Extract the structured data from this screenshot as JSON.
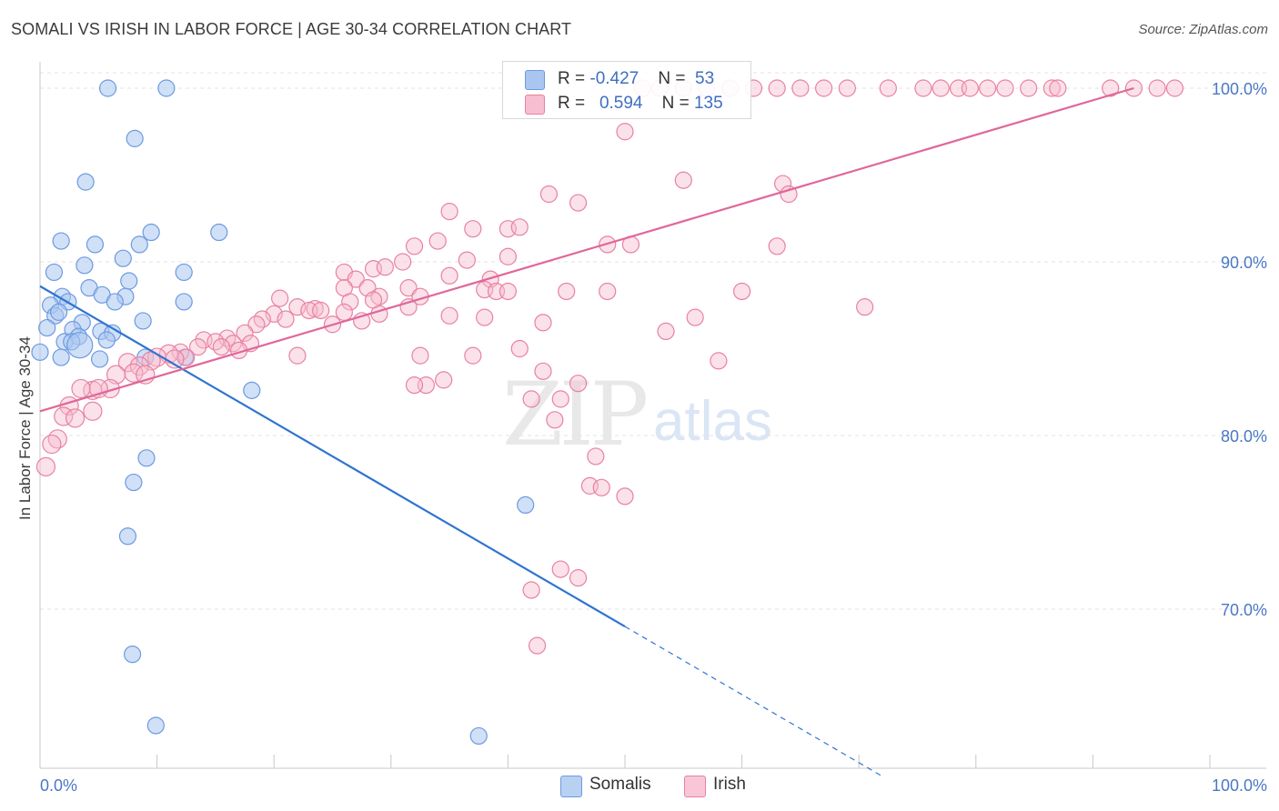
{
  "title": "SOMALI VS IRISH IN LABOR FORCE | AGE 30-34 CORRELATION CHART",
  "source": "Source: ZipAtlas.com",
  "watermark": {
    "zip": "ZIP",
    "atlas": "atlas"
  },
  "legend": {
    "rows": [
      {
        "r_label": "R = ",
        "r_value": "-0.427",
        "n_label": "N = ",
        "n_value": "53",
        "color": "#a9c6f0",
        "border": "#6d9ae0"
      },
      {
        "r_label": "R = ",
        "r_value": "0.594",
        "n_label": "N = ",
        "n_value": "135",
        "color": "#f7bdd0",
        "border": "#e8829f"
      }
    ],
    "bottom": [
      {
        "label": "Somalis",
        "color": "#b8d0f2",
        "border": "#6d9ae0"
      },
      {
        "label": "Irish",
        "color": "#f8c6d6",
        "border": "#e8829f"
      }
    ]
  },
  "chart_data": {
    "type": "scatter",
    "title": "SOMALI VS IRISH IN LABOR FORCE | AGE 30-34 CORRELATION CHART",
    "xlabel": "",
    "ylabel": "In Labor Force | Age 30-34",
    "xlim": [
      0,
      100
    ],
    "ylim": [
      61.5,
      102
    ],
    "x_tick_labels": [
      {
        "value": 0,
        "label": "0.0%"
      },
      {
        "value": 100,
        "label": "100.0%"
      }
    ],
    "y_tick_labels": [
      {
        "value": 70,
        "label": "70.0%"
      },
      {
        "value": 80,
        "label": "80.0%"
      },
      {
        "value": 90,
        "label": "90.0%"
      },
      {
        "value": 100,
        "label": "100.0%"
      }
    ],
    "series": [
      {
        "name": "Somalis",
        "color": "#6d9ae0",
        "fill": "#a9c6f0",
        "trend": {
          "x0": 0,
          "y0": 88.6,
          "x1": 50,
          "y1": 69.0,
          "dash_to_x": 72
        },
        "points": [
          [
            5.8,
            100
          ],
          [
            10.8,
            100
          ],
          [
            8.1,
            97.1
          ],
          [
            3.9,
            94.6
          ],
          [
            1.8,
            91.2
          ],
          [
            4.7,
            91.0
          ],
          [
            8.5,
            91.0
          ],
          [
            9.5,
            91.7
          ],
          [
            15.3,
            91.7
          ],
          [
            1.2,
            89.4
          ],
          [
            3.8,
            89.8
          ],
          [
            7.1,
            90.2
          ],
          [
            12.3,
            89.4
          ],
          [
            7.6,
            88.9
          ],
          [
            4.2,
            88.5
          ],
          [
            1.9,
            88.0
          ],
          [
            5.3,
            88.1
          ],
          [
            7.3,
            88.0
          ],
          [
            0.9,
            87.5
          ],
          [
            2.4,
            87.7
          ],
          [
            6.4,
            87.7
          ],
          [
            12.3,
            87.7
          ],
          [
            1.3,
            86.9
          ],
          [
            1.6,
            87.1
          ],
          [
            3.6,
            86.5
          ],
          [
            8.8,
            86.6
          ],
          [
            0.6,
            86.2
          ],
          [
            2.8,
            86.1
          ],
          [
            5.2,
            86.0
          ],
          [
            6.2,
            85.9
          ],
          [
            3.3,
            85.7
          ],
          [
            5.7,
            85.5
          ],
          [
            2.1,
            85.4
          ],
          [
            2.7,
            85.4
          ],
          [
            3.4,
            85.2
          ],
          [
            0,
            84.8
          ],
          [
            1.8,
            84.5
          ],
          [
            5.1,
            84.4
          ],
          [
            9.0,
            84.5
          ],
          [
            12.4,
            84.5
          ],
          [
            18.1,
            82.6
          ],
          [
            9.1,
            78.7
          ],
          [
            8.0,
            77.3
          ],
          [
            7.5,
            74.2
          ],
          [
            41.5,
            76.0
          ],
          [
            7.9,
            67.4
          ],
          [
            9.9,
            63.3
          ],
          [
            37.5,
            62.7
          ]
        ],
        "sizes": [
          9,
          9,
          9,
          9,
          9,
          9,
          9,
          9,
          9,
          9,
          9,
          9,
          9,
          9,
          9,
          9,
          9,
          9,
          9,
          9,
          9,
          9,
          9,
          9,
          9,
          9,
          9,
          9,
          9,
          9,
          9,
          9,
          9,
          9,
          14,
          9,
          9,
          9,
          9,
          9,
          9,
          9,
          9,
          9,
          9,
          9,
          9,
          9
        ]
      },
      {
        "name": "Irish",
        "color": "#e8829f",
        "fill": "#f7bdd0",
        "trend": {
          "x0": 0,
          "y0": 81.4,
          "x1": 93.5,
          "y1": 100.0
        },
        "points": [
          [
            51.5,
            100
          ],
          [
            53,
            100
          ],
          [
            55,
            100
          ],
          [
            57,
            100
          ],
          [
            59,
            100
          ],
          [
            61,
            100
          ],
          [
            63,
            100
          ],
          [
            65,
            100
          ],
          [
            67,
            100
          ],
          [
            69,
            100
          ],
          [
            72.5,
            100
          ],
          [
            75.5,
            100
          ],
          [
            77,
            100
          ],
          [
            78.5,
            100
          ],
          [
            79.5,
            100
          ],
          [
            81,
            100
          ],
          [
            82.5,
            100
          ],
          [
            84.5,
            100
          ],
          [
            86.5,
            100
          ],
          [
            87,
            100
          ],
          [
            91.5,
            100
          ],
          [
            93.5,
            100
          ],
          [
            95.5,
            100
          ],
          [
            97,
            100
          ],
          [
            50,
            97.5
          ],
          [
            55,
            94.7
          ],
          [
            63.5,
            94.5
          ],
          [
            64,
            93.9
          ],
          [
            43.5,
            93.9
          ],
          [
            46,
            93.4
          ],
          [
            35,
            92.9
          ],
          [
            37,
            91.9
          ],
          [
            40,
            91.9
          ],
          [
            41,
            92.0
          ],
          [
            34,
            91.2
          ],
          [
            32,
            90.9
          ],
          [
            48.5,
            91.0
          ],
          [
            50.5,
            91.0
          ],
          [
            63,
            90.9
          ],
          [
            40,
            90.3
          ],
          [
            36.5,
            90.1
          ],
          [
            31,
            90.0
          ],
          [
            28.5,
            89.6
          ],
          [
            29.5,
            89.7
          ],
          [
            26,
            89.4
          ],
          [
            27,
            89.0
          ],
          [
            35,
            89.2
          ],
          [
            38.5,
            89.0
          ],
          [
            31.5,
            88.5
          ],
          [
            26,
            88.5
          ],
          [
            28,
            88.5
          ],
          [
            38,
            88.4
          ],
          [
            39,
            88.3
          ],
          [
            40,
            88.3
          ],
          [
            45,
            88.3
          ],
          [
            29,
            88.0
          ],
          [
            32.5,
            88.0
          ],
          [
            28.5,
            87.8
          ],
          [
            20.5,
            87.9
          ],
          [
            26.5,
            87.7
          ],
          [
            31.5,
            87.4
          ],
          [
            22,
            87.4
          ],
          [
            23.5,
            87.3
          ],
          [
            23,
            87.2
          ],
          [
            24,
            87.2
          ],
          [
            26,
            87.1
          ],
          [
            29,
            87.0
          ],
          [
            35,
            86.9
          ],
          [
            38,
            86.8
          ],
          [
            20,
            87.0
          ],
          [
            19,
            86.7
          ],
          [
            21,
            86.7
          ],
          [
            27.5,
            86.6
          ],
          [
            18.5,
            86.4
          ],
          [
            25,
            86.4
          ],
          [
            17.5,
            85.9
          ],
          [
            16,
            85.6
          ],
          [
            14,
            85.5
          ],
          [
            15,
            85.4
          ],
          [
            16.5,
            85.3
          ],
          [
            18,
            85.3
          ],
          [
            13.5,
            85.1
          ],
          [
            15.5,
            85.1
          ],
          [
            17,
            84.9
          ],
          [
            12,
            84.8
          ],
          [
            11,
            84.7
          ],
          [
            12.5,
            84.5
          ],
          [
            10,
            84.5
          ],
          [
            11.5,
            84.4
          ],
          [
            9.5,
            84.3
          ],
          [
            7.5,
            84.2
          ],
          [
            8.5,
            84.0
          ],
          [
            8,
            83.6
          ],
          [
            9,
            83.5
          ],
          [
            6.5,
            83.5
          ],
          [
            22,
            84.6
          ],
          [
            37,
            84.6
          ],
          [
            41,
            85.0
          ],
          [
            43,
            83.7
          ],
          [
            34.5,
            83.2
          ],
          [
            33,
            82.9
          ],
          [
            32,
            82.9
          ],
          [
            42,
            82.1
          ],
          [
            6,
            82.7
          ],
          [
            4.5,
            82.6
          ],
          [
            5,
            82.7
          ],
          [
            3.5,
            82.7
          ],
          [
            2.5,
            81.7
          ],
          [
            4.5,
            81.4
          ],
          [
            2,
            81.1
          ],
          [
            3,
            81.0
          ],
          [
            1.5,
            79.8
          ],
          [
            1,
            79.5
          ],
          [
            0.5,
            78.2
          ],
          [
            44,
            80.9
          ],
          [
            47.5,
            78.8
          ],
          [
            47,
            77.1
          ],
          [
            48,
            77.0
          ],
          [
            50,
            76.5
          ],
          [
            44.5,
            72.3
          ],
          [
            46,
            71.8
          ],
          [
            42,
            71.1
          ],
          [
            42.5,
            67.9
          ],
          [
            32.5,
            84.6
          ],
          [
            58,
            84.3
          ],
          [
            43,
            86.5
          ],
          [
            56,
            86.8
          ],
          [
            60,
            88.3
          ],
          [
            48.5,
            88.3
          ],
          [
            53.5,
            86.0
          ],
          [
            46,
            83.0
          ],
          [
            70.5,
            87.4
          ],
          [
            44.5,
            82.1
          ]
        ]
      }
    ]
  }
}
